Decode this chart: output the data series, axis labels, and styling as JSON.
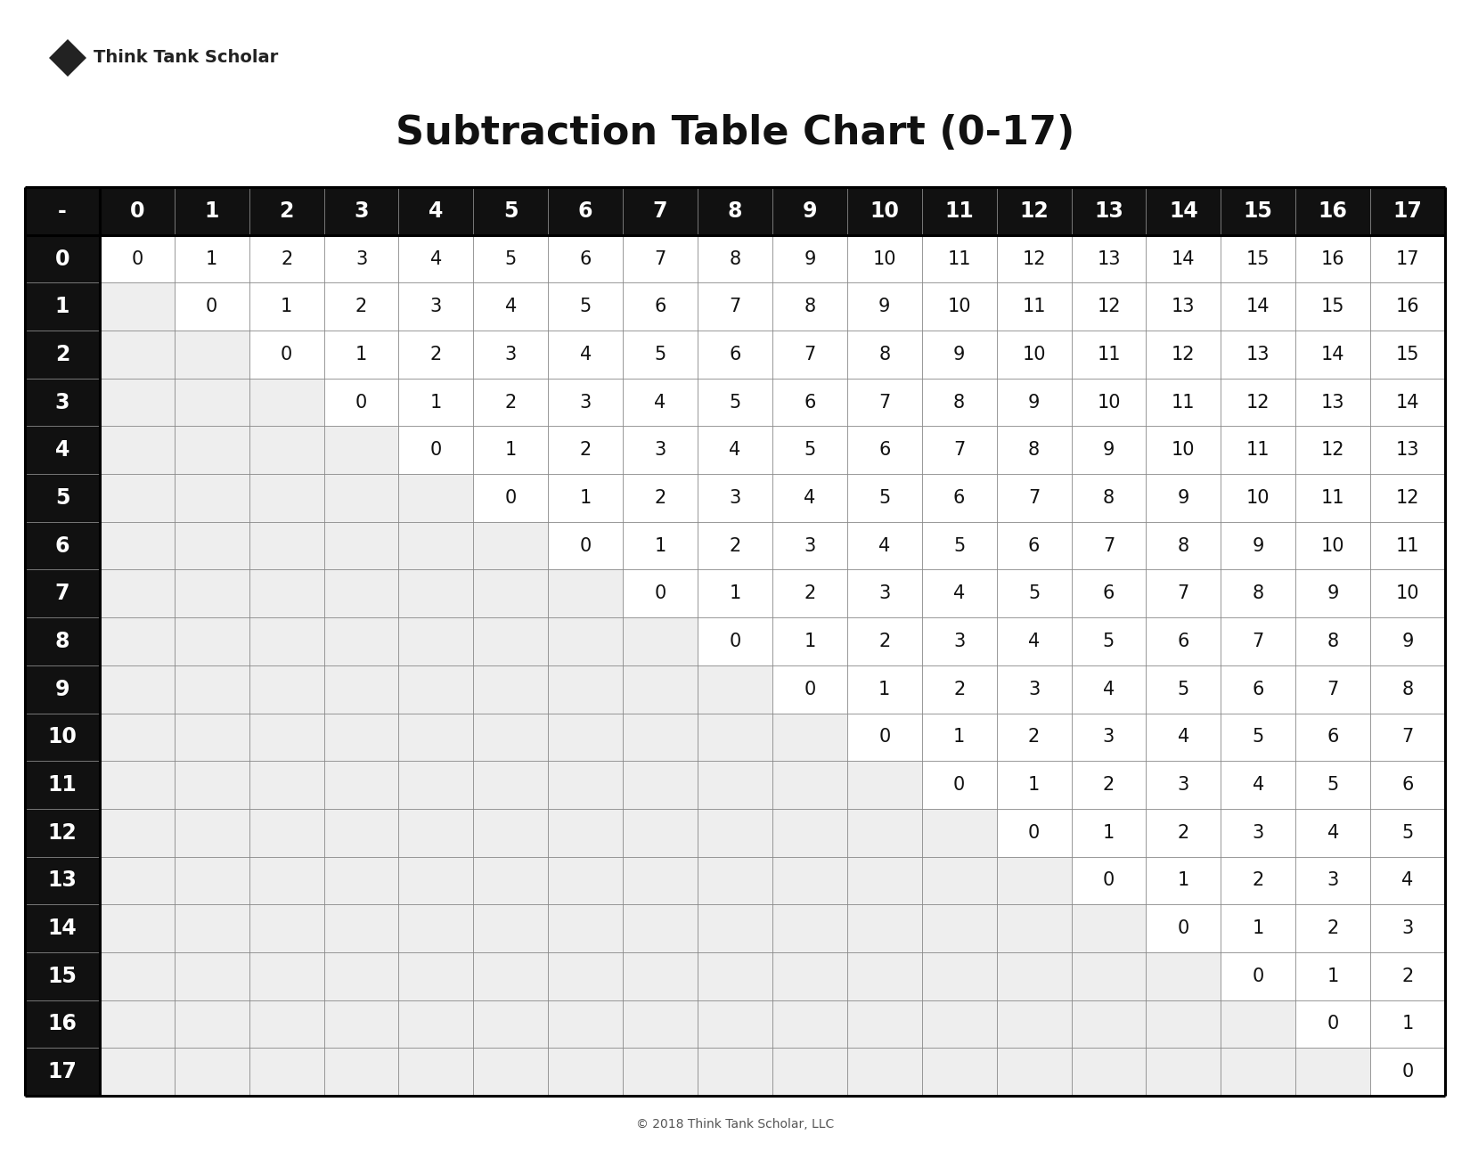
{
  "title": "Subtraction Table Chart (0-17)",
  "n": 18,
  "header_bg": "#111111",
  "header_fg": "#ffffff",
  "cell_bg_filled": "#ffffff",
  "cell_bg_empty": "#eeeeee",
  "grid_color_thin": "#888888",
  "grid_color_thick": "#000000",
  "text_color": "#111111",
  "logo_text": "Think Tank Scholar",
  "footer_text": "© 2018 Think Tank Scholar, LLC",
  "title_fontsize": 32,
  "header_fontsize": 17,
  "cell_fontsize": 15,
  "logo_fontsize": 14,
  "footer_fontsize": 10
}
